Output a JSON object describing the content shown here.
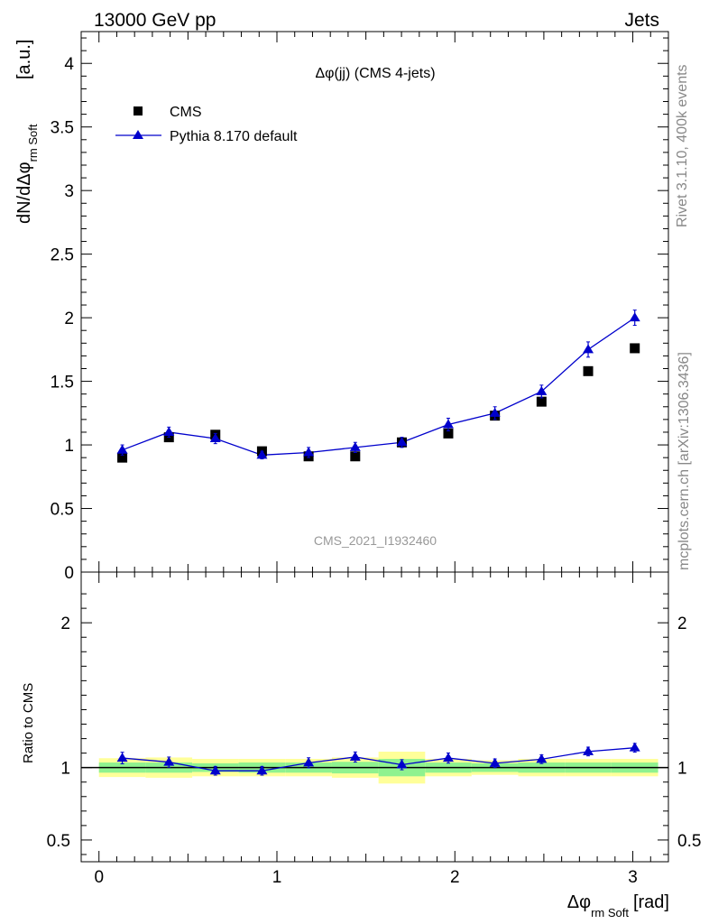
{
  "header": {
    "energy": "13000 GeV pp",
    "category": "Jets"
  },
  "side": {
    "rivet": "Rivet 3.1.10,  400k events",
    "mcplots": "mcplots.cern.ch [arXiv:1306.3436]"
  },
  "colors": {
    "data": "#000000",
    "mc": "#0000cc",
    "band_inner": "#8ff28f",
    "band_outer": "#ffff99"
  },
  "chart_data": [
    {
      "type": "scatter",
      "panel": "main",
      "title": "Δφ(jj) (CMS 4-jets)",
      "watermark": "CMS_2021_I1932460",
      "ylabel": "dN/dΔφ",
      "ylabel_sub": "rm Soft",
      "ylabel_unit": "[a.u.]",
      "xlim": [
        -0.1,
        3.2
      ],
      "ylim": [
        0,
        4.25
      ],
      "yticks": [
        "0",
        "0.5",
        "1",
        "1.5",
        "2",
        "2.5",
        "3",
        "3.5",
        "4"
      ],
      "legend": [
        "CMS",
        "Pythia 8.170 default"
      ],
      "x": [
        0.131,
        0.393,
        0.654,
        0.916,
        1.178,
        1.44,
        1.702,
        1.963,
        2.225,
        2.487,
        2.749,
        3.011
      ],
      "series": [
        {
          "name": "CMS",
          "values": [
            0.9,
            1.06,
            1.08,
            0.95,
            0.91,
            0.91,
            1.02,
            1.09,
            1.23,
            1.34,
            1.58,
            1.76
          ]
        },
        {
          "name": "Pythia 8.170 default",
          "values": [
            0.96,
            1.1,
            1.05,
            0.92,
            0.94,
            0.98,
            1.02,
            1.16,
            1.25,
            1.42,
            1.75,
            2.0
          ],
          "errors": [
            0.04,
            0.04,
            0.04,
            0.03,
            0.04,
            0.04,
            0.04,
            0.05,
            0.05,
            0.05,
            0.06,
            0.06
          ]
        }
      ]
    },
    {
      "type": "line",
      "panel": "ratio",
      "ylabel": "Ratio to CMS",
      "xlabel": "Δφ",
      "xlabel_sub": "rm Soft",
      "xlabel_unit": "[rad]",
      "xlim": [
        -0.1,
        3.2
      ],
      "ylim": [
        0.35,
        2.35
      ],
      "xticks": [
        "0",
        "1",
        "2",
        "3"
      ],
      "yticks": [
        "0.5",
        "1",
        "2"
      ],
      "x": [
        0.131,
        0.393,
        0.654,
        0.916,
        1.178,
        1.44,
        1.702,
        1.963,
        2.225,
        2.487,
        2.749,
        3.011
      ],
      "series": [
        {
          "name": "Pythia 8.170 default",
          "values": [
            1.066,
            1.038,
            0.978,
            0.978,
            1.033,
            1.073,
            1.02,
            1.066,
            1.03,
            1.058,
            1.111,
            1.137
          ],
          "errors": [
            0.04,
            0.035,
            0.03,
            0.03,
            0.035,
            0.035,
            0.035,
            0.035,
            0.03,
            0.03,
            0.03,
            0.03
          ]
        }
      ],
      "band_edges": [
        0.0,
        0.262,
        0.524,
        0.785,
        1.047,
        1.309,
        1.571,
        1.833,
        2.094,
        2.356,
        2.618,
        2.88,
        3.142
      ],
      "band_inner": [
        0.035,
        0.035,
        0.03,
        0.035,
        0.035,
        0.04,
        0.06,
        0.035,
        0.03,
        0.035,
        0.035,
        0.035
      ],
      "band_outer": [
        0.065,
        0.07,
        0.06,
        0.06,
        0.06,
        0.07,
        0.11,
        0.06,
        0.05,
        0.06,
        0.06,
        0.06
      ]
    }
  ]
}
